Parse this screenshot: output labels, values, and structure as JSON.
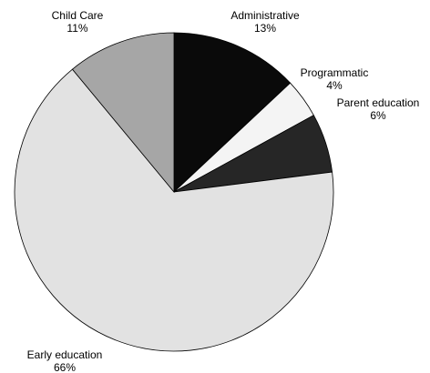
{
  "chart_data": {
    "type": "pie",
    "slices": [
      {
        "label": "Administrative",
        "value": 13,
        "display": "13%",
        "color": "#0a0a0a"
      },
      {
        "label": "Programmatic",
        "value": 4,
        "display": "4%",
        "color": "#f4f4f4"
      },
      {
        "label": "Parent education",
        "value": 6,
        "display": "6%",
        "color": "#262626"
      },
      {
        "label": "Early education",
        "value": 66,
        "display": "66%",
        "color": "#e2e2e2"
      },
      {
        "label": "Child Care",
        "value": 11,
        "display": "11%",
        "color": "#a6a6a6"
      }
    ]
  }
}
